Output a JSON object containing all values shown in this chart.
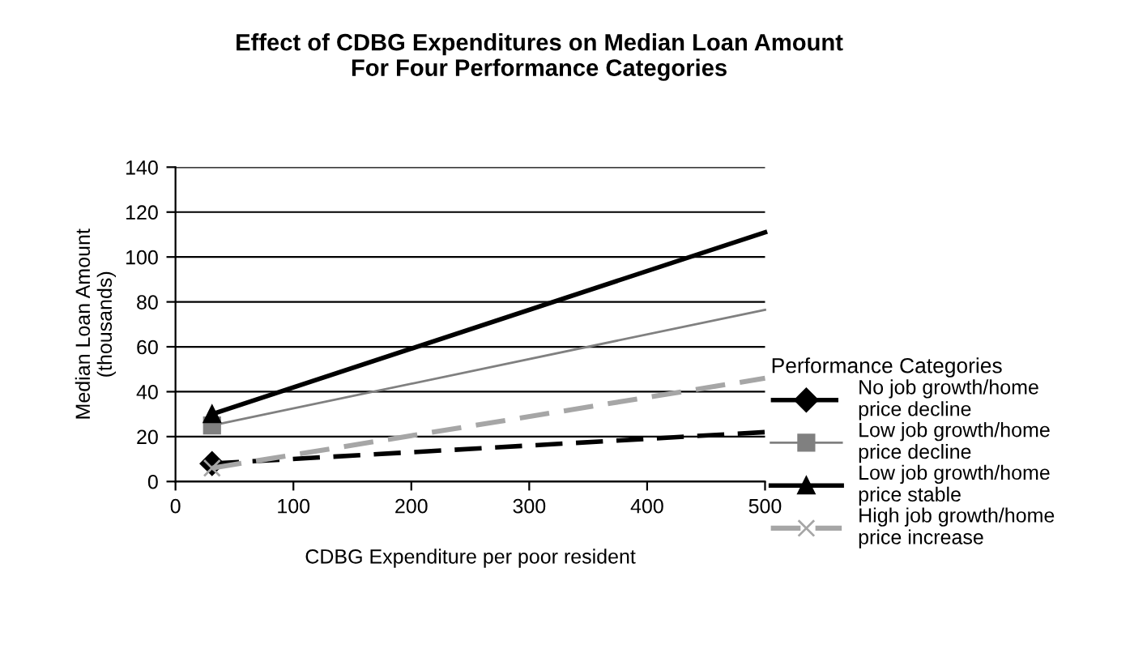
{
  "chart_data": {
    "type": "line",
    "title": "Effect of CDBG Expenditures on Median Loan Amount\nFor Four Performance Categories",
    "xlabel": "CDBG Expenditure per poor resident",
    "ylabel": "Median Loan Amount\n(thousands)",
    "legend_title": "Performance Categories",
    "xlim": [
      0,
      500
    ],
    "xticks": [
      0,
      100,
      200,
      300,
      400,
      500
    ],
    "ylim": [
      0,
      140
    ],
    "yticks": [
      0,
      20,
      40,
      60,
      80,
      100,
      120,
      140
    ],
    "grid": "y",
    "legend": "right",
    "x": [
      31,
      500
    ],
    "series": [
      {
        "name": "No job growth/home\nprice decline",
        "color": "#000000",
        "values": [
          8,
          22
        ],
        "marker": "diamond",
        "line_style": "dashed"
      },
      {
        "name": "Low job growth/home\nprice decline",
        "color": "#808080",
        "values": [
          25,
          76.5
        ],
        "marker": "square",
        "line_style": "solid"
      },
      {
        "name": "Low job growth/home\nprice stable",
        "color": "#000000",
        "values": [
          30,
          111
        ],
        "marker": "triangle",
        "line_style": "solid"
      },
      {
        "name": "High job growth/home\nprice increase",
        "color": "#a6a6a6",
        "values": [
          6,
          46
        ],
        "marker": "cross",
        "line_style": "dashed"
      }
    ]
  }
}
